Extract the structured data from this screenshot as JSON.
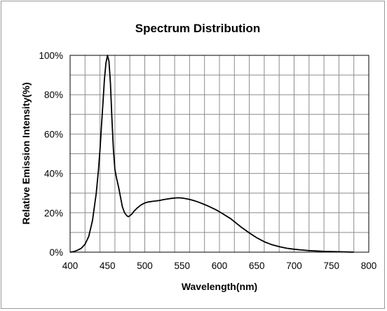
{
  "chart_data": {
    "type": "line",
    "title": "Spectrum Distribution",
    "xlabel": "Wavelength(nm)",
    "ylabel": "Relative  Emission  Intensity(%)",
    "xlim": [
      400,
      800
    ],
    "ylim": [
      0,
      100
    ],
    "x_ticks": [
      400,
      450,
      500,
      550,
      600,
      650,
      700,
      750,
      800
    ],
    "x_tick_labels": [
      "400",
      "450",
      "500",
      "550",
      "600",
      "650",
      "700",
      "750",
      "800"
    ],
    "y_ticks": [
      0,
      20,
      40,
      60,
      80,
      100
    ],
    "y_tick_labels": [
      "0%",
      "20%",
      "40%",
      "60%",
      "80%",
      "100%"
    ],
    "grid": true,
    "grid_x_step": 20,
    "grid_y_step": 10,
    "series": [
      {
        "color": "#000000",
        "x": [
          400,
          405,
          410,
          415,
          420,
          425,
          430,
          435,
          438,
          440,
          442,
          444,
          446,
          448,
          450,
          452,
          454,
          456,
          458,
          460,
          462,
          465,
          468,
          470,
          473,
          476,
          478,
          480,
          483,
          486,
          490,
          495,
          500,
          505,
          510,
          515,
          520,
          525,
          530,
          535,
          540,
          545,
          550,
          555,
          560,
          565,
          570,
          575,
          580,
          585,
          590,
          595,
          600,
          605,
          610,
          615,
          620,
          625,
          630,
          640,
          650,
          660,
          670,
          680,
          690,
          700,
          710,
          720,
          730,
          740,
          750,
          760,
          770,
          780
        ],
        "y": [
          0,
          0.3,
          1,
          2,
          4,
          8,
          16,
          30,
          42,
          52,
          64,
          76,
          88,
          96,
          100,
          97,
          86,
          68,
          52,
          42,
          38,
          33,
          27,
          23,
          20,
          18.5,
          18,
          18.5,
          19.5,
          21,
          22.5,
          24,
          25,
          25.5,
          25.8,
          26,
          26.3,
          26.7,
          27,
          27.3,
          27.5,
          27.6,
          27.5,
          27.2,
          26.8,
          26.3,
          25.7,
          25,
          24.2,
          23.4,
          22.5,
          21.6,
          20.5,
          19.4,
          18.2,
          17,
          15.5,
          14,
          12.5,
          9.8,
          7.3,
          5.3,
          3.8,
          2.8,
          2,
          1.5,
          1.1,
          0.8,
          0.6,
          0.4,
          0.3,
          0.2,
          0.1,
          0
        ]
      }
    ]
  }
}
